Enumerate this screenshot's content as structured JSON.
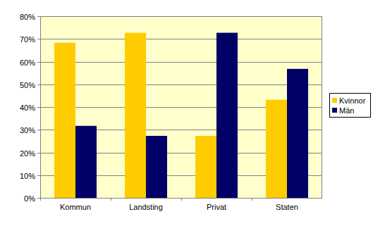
{
  "chart_data": {
    "type": "bar",
    "categories": [
      "Kommun",
      "Landsting",
      "Privat",
      "Staten"
    ],
    "series": [
      {
        "name": "Kvinnor",
        "color": "#FFCC00",
        "values": [
          68.3,
          72.7,
          27.3,
          43.2
        ]
      },
      {
        "name": "Män",
        "color": "#000066",
        "values": [
          31.7,
          27.3,
          72.7,
          56.8
        ]
      }
    ],
    "ylim": [
      0,
      80
    ],
    "yticks": [
      {
        "value": 0,
        "label": "0%"
      },
      {
        "value": 10,
        "label": "10%"
      },
      {
        "value": 20,
        "label": "20%"
      },
      {
        "value": 30,
        "label": "30%"
      },
      {
        "value": 40,
        "label": "40%"
      },
      {
        "value": 50,
        "label": "50%"
      },
      {
        "value": 60,
        "label": "60%"
      },
      {
        "value": 70,
        "label": "70%"
      },
      {
        "value": 80,
        "label": "80%"
      }
    ],
    "grid": true,
    "legend": "right"
  }
}
